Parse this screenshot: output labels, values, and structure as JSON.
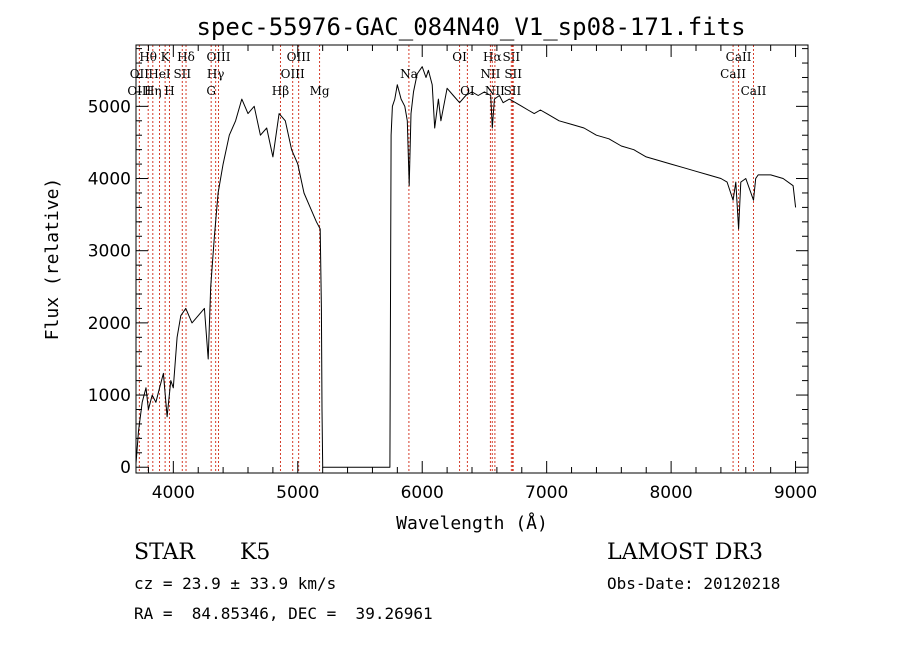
{
  "chart_data": {
    "type": "line",
    "title": "spec-55976-GAC_084N40_V1_sp08-171.fits",
    "xlabel": "Wavelength (Å)",
    "ylabel": "Flux (relative)",
    "xlim": [
      3700,
      9100
    ],
    "ylim": [
      -80,
      5850
    ],
    "xticks": [
      4000,
      5000,
      6000,
      7000,
      8000,
      9000
    ],
    "xtick_labels": [
      "4000",
      "5000",
      "6000",
      "7000",
      "8000",
      "9000"
    ],
    "yticks": [
      0,
      1000,
      2000,
      3000,
      4000,
      5000
    ],
    "ytick_labels": [
      "0",
      "1000",
      "2000",
      "3000",
      "4000",
      "5000"
    ],
    "grid": false,
    "series": [
      {
        "name": "flux",
        "x": [
          3700,
          3720,
          3750,
          3780,
          3800,
          3830,
          3860,
          3890,
          3920,
          3950,
          3980,
          4000,
          4030,
          4060,
          4100,
          4150,
          4200,
          4250,
          4280,
          4300,
          4330,
          4360,
          4400,
          4450,
          4500,
          4550,
          4600,
          4650,
          4700,
          4750,
          4800,
          4850,
          4900,
          4950,
          5000,
          5050,
          5100,
          5150,
          5180,
          5190,
          5195,
          5200,
          5210,
          5740,
          5750,
          5760,
          5780,
          5800,
          5830,
          5860,
          5880,
          5895,
          5910,
          5930,
          5960,
          6000,
          6030,
          6050,
          6080,
          6100,
          6130,
          6150,
          6200,
          6250,
          6300,
          6350,
          6400,
          6450,
          6500,
          6550,
          6563,
          6580,
          6620,
          6650,
          6700,
          6750,
          6800,
          6850,
          6900,
          6950,
          7000,
          7100,
          7200,
          7300,
          7400,
          7500,
          7600,
          7700,
          7800,
          7900,
          8000,
          8100,
          8200,
          8300,
          8400,
          8450,
          8498,
          8520,
          8542,
          8560,
          8600,
          8662,
          8680,
          8700,
          8800,
          8900,
          8980,
          9000
        ],
        "y": [
          50,
          500,
          900,
          1100,
          800,
          1000,
          900,
          1100,
          1300,
          700,
          1200,
          1100,
          1800,
          2100,
          2200,
          2000,
          2100,
          2200,
          1500,
          2500,
          3200,
          3800,
          4200,
          4600,
          4800,
          5100,
          4900,
          5000,
          4600,
          4700,
          4300,
          4900,
          4800,
          4400,
          4200,
          3800,
          3600,
          3400,
          3300,
          2200,
          800,
          0,
          0,
          0,
          4600,
          5000,
          5100,
          5300,
          5100,
          5000,
          4800,
          3900,
          4900,
          5200,
          5450,
          5550,
          5400,
          5500,
          5300,
          4700,
          5100,
          4800,
          5250,
          5150,
          5050,
          5150,
          5200,
          5150,
          5200,
          5150,
          4700,
          5100,
          5150,
          5050,
          5100,
          5050,
          5000,
          4950,
          4900,
          4950,
          4900,
          4800,
          4750,
          4700,
          4600,
          4550,
          4450,
          4400,
          4300,
          4250,
          4200,
          4150,
          4100,
          4050,
          4000,
          3950,
          3700,
          3950,
          3300,
          3950,
          4000,
          3700,
          4000,
          4050,
          4050,
          4000,
          3900,
          3600
        ]
      }
    ],
    "line_marks": [
      {
        "label": "Hθ",
        "x": 3798,
        "row": 1
      },
      {
        "label": "OII",
        "x": 3727,
        "row": 2
      },
      {
        "label": "OIII",
        "x": 3727,
        "row": 3
      },
      {
        "label": "K",
        "x": 3934,
        "row": 1
      },
      {
        "label": "HeI",
        "x": 3889,
        "row": 2
      },
      {
        "label": "Hη",
        "x": 3835,
        "row": 3
      },
      {
        "label": "SII",
        "x": 4072,
        "row": 2
      },
      {
        "label": "H",
        "x": 3969,
        "row": 3
      },
      {
        "label": "Hδ",
        "x": 4102,
        "row": 1
      },
      {
        "label": "OIII",
        "x": 4363,
        "row": 1
      },
      {
        "label": "Hγ",
        "x": 4340,
        "row": 2
      },
      {
        "label": "G",
        "x": 4304,
        "row": 3
      },
      {
        "label": "Hβ",
        "x": 4861,
        "row": 3
      },
      {
        "label": "OIII",
        "x": 5007,
        "row": 1
      },
      {
        "label": "OIII",
        "x": 4959,
        "row": 2
      },
      {
        "label": "Mg",
        "x": 5175,
        "row": 3
      },
      {
        "label": "Na",
        "x": 5893,
        "row": 2
      },
      {
        "label": "OI",
        "x": 6300,
        "row": 1
      },
      {
        "label": "OI",
        "x": 6363,
        "row": 3
      },
      {
        "label": "Hα",
        "x": 6563,
        "row": 1
      },
      {
        "label": "SII",
        "x": 6716,
        "row": 1
      },
      {
        "label": "NII",
        "x": 6548,
        "row": 2
      },
      {
        "label": "SII",
        "x": 6731,
        "row": 2
      },
      {
        "label": "NII",
        "x": 6584,
        "row": 3
      },
      {
        "label": "SII",
        "x": 6725,
        "row": 3
      },
      {
        "label": "CaII",
        "x": 8542,
        "row": 1
      },
      {
        "label": "CaII",
        "x": 8498,
        "row": 2
      },
      {
        "label": "CaII",
        "x": 8662,
        "row": 3
      }
    ]
  },
  "info": {
    "object_class": "STAR",
    "subclass": "K5",
    "redshift": "cz = 23.9 ± 33.9 km/s",
    "coords": "RA =  84.85346, DEC =  39.26961",
    "survey": "LAMOST DR3",
    "obs_date": "Obs-Date: 20120218"
  }
}
